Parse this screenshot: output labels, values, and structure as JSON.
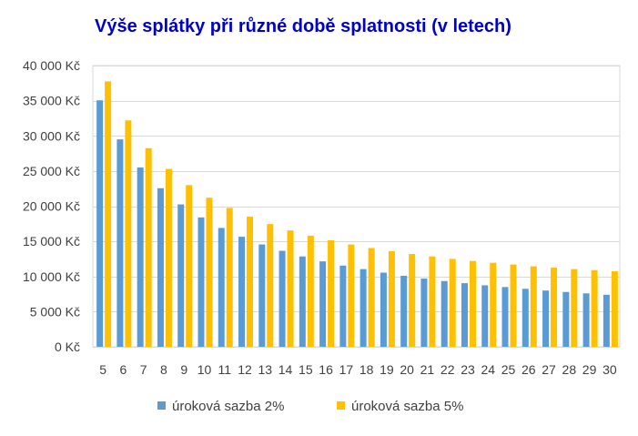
{
  "chart_data": {
    "type": "bar",
    "title": "Výše splátky při různé době splatnosti (v letech)",
    "xlabel": "",
    "ylabel": "",
    "ylim": [
      0,
      40000
    ],
    "y_ticks": [
      0,
      5000,
      10000,
      15000,
      20000,
      25000,
      30000,
      35000,
      40000
    ],
    "y_tick_labels": [
      "0 Kč",
      "5 000 Kč",
      "10 000 Kč",
      "15 000 Kč",
      "20 000 Kč",
      "25 000 Kč",
      "30 000 Kč",
      "35 000 Kč",
      "40 000 Kč"
    ],
    "categories": [
      "5",
      "6",
      "7",
      "8",
      "9",
      "10",
      "11",
      "12",
      "13",
      "14",
      "15",
      "16",
      "17",
      "18",
      "19",
      "20",
      "21",
      "22",
      "23",
      "24",
      "25",
      "26",
      "27",
      "28",
      "29",
      "30"
    ],
    "series": [
      {
        "name": "úroková sazba 2%",
        "color": "#5b9bd5",
        "values": [
          35050,
          29500,
          25500,
          22550,
          20250,
          18400,
          16900,
          15650,
          14550,
          13650,
          12850,
          12150,
          11550,
          11050,
          10550,
          10100,
          9700,
          9350,
          9050,
          8750,
          8500,
          8250,
          8000,
          7800,
          7600,
          7400
        ]
      },
      {
        "name": "úroková sazba 5%",
        "color": "#ffc000",
        "values": [
          37750,
          32200,
          28250,
          25300,
          23000,
          21200,
          19750,
          18500,
          17450,
          16550,
          15800,
          15150,
          14550,
          14050,
          13600,
          13200,
          12850,
          12500,
          12200,
          11950,
          11700,
          11450,
          11250,
          11050,
          10900,
          10750
        ]
      }
    ],
    "grid": true,
    "legend_position": "bottom"
  }
}
